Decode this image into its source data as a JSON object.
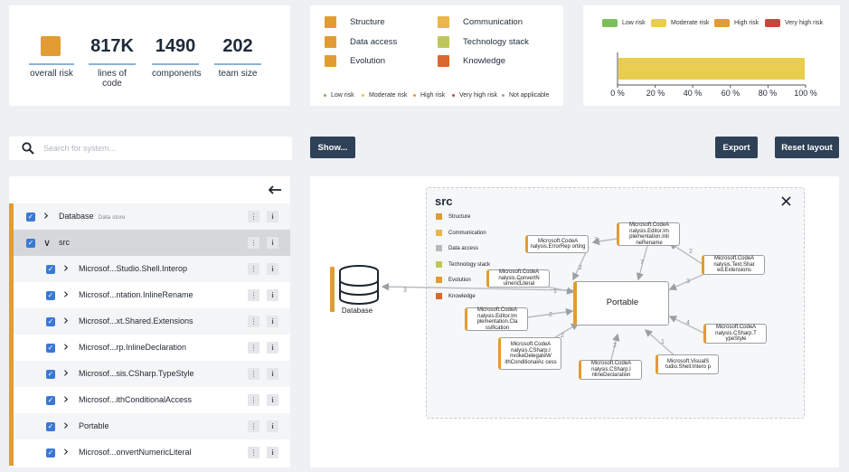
{
  "stats": [
    {
      "value": "",
      "label": "overall risk"
    },
    {
      "value": "817K",
      "label": "lines of code"
    },
    {
      "value": "1490",
      "label": "components"
    },
    {
      "value": "202",
      "label": "team size"
    }
  ],
  "legend": {
    "categories": [
      {
        "label": "Structure",
        "color": "#e19c34"
      },
      {
        "label": "Communication",
        "color": "#eab54a"
      },
      {
        "label": "Data access",
        "color": "#e19c34"
      },
      {
        "label": "Technology stack",
        "color": "#bfc75a"
      },
      {
        "label": "Evolution",
        "color": "#e19c34"
      },
      {
        "label": "Knowledge",
        "color": "#d9692e"
      }
    ],
    "risk_levels": [
      {
        "label": "Low risk",
        "color": "#72b55a"
      },
      {
        "label": "Moderate risk",
        "color": "#e6c84a"
      },
      {
        "label": "High risk",
        "color": "#e19c34"
      },
      {
        "label": "Very high risk",
        "color": "#c9463d"
      },
      {
        "label": "Not applicable",
        "color": "#9aa0a6"
      }
    ]
  },
  "riskbar": {
    "legend": [
      {
        "label": "Low risk",
        "color": "#7cbf5a"
      },
      {
        "label": "Moderate risk",
        "color": "#e9cd4f"
      },
      {
        "label": "High risk",
        "color": "#e19c34"
      },
      {
        "label": "Very high risk",
        "color": "#c9463d"
      }
    ],
    "ticks": [
      "0 %",
      "20 %",
      "40 %",
      "60 %",
      "80 %",
      "100 %"
    ],
    "moderate_fraction": 1.0
  },
  "search": {
    "placeholder": "Search for system..."
  },
  "buttons": {
    "show": "Show...",
    "export": "Export",
    "reset": "Reset layout"
  },
  "tree": {
    "rows": [
      {
        "name": "Database",
        "sub": "Data store",
        "level": 0,
        "expanded": false,
        "selected": false
      },
      {
        "name": "src",
        "sub": "",
        "level": 0,
        "expanded": true,
        "selected": true
      },
      {
        "name": "Microsof...Studio.Shell.Interop",
        "sub": "",
        "level": 1,
        "expanded": false,
        "selected": false
      },
      {
        "name": "Microsof...ntation.InlineRename",
        "sub": "",
        "level": 1,
        "expanded": false,
        "selected": false
      },
      {
        "name": "Microsof...xt.Shared.Extensions",
        "sub": "",
        "level": 1,
        "expanded": false,
        "selected": false
      },
      {
        "name": "Microsof...rp.InlineDeclaration",
        "sub": "",
        "level": 1,
        "expanded": false,
        "selected": false
      },
      {
        "name": "Microsof...sis.CSharp.TypeStyle",
        "sub": "",
        "level": 1,
        "expanded": false,
        "selected": false
      },
      {
        "name": "Microsof...ithConditionalAccess",
        "sub": "",
        "level": 1,
        "expanded": false,
        "selected": false
      },
      {
        "name": "Portable",
        "sub": "",
        "level": 1,
        "expanded": false,
        "selected": false
      },
      {
        "name": "Microsof...onvertNumericLiteral",
        "sub": "",
        "level": 1,
        "expanded": false,
        "selected": false
      }
    ]
  },
  "graph": {
    "title": "src",
    "legend": [
      {
        "label": "Structure",
        "color": "#e19c34"
      },
      {
        "label": "Communication",
        "color": "#eab54a"
      },
      {
        "label": "Data access",
        "color": "#b9b9b9"
      },
      {
        "label": "Technology stack",
        "color": "#bfc75a"
      },
      {
        "label": "Evolution",
        "color": "#e19c34"
      },
      {
        "label": "Knowledge",
        "color": "#d9692e"
      }
    ],
    "database_label": "Database",
    "center": "Portable",
    "nodes": [
      "Microsoft.CodeA nalysis.ErrorRep orting",
      "Microsoft.CodeA nalysis.Editor.Im plementation.Inli neRename",
      "Microsoft.CodeA nalysis.Text.Shar ed.Extensions",
      "Microsoft.CodeA nalysis.ConvertN umericLiteral",
      "Microsoft.CodeA nalysis.Editor.Im plementation.Cla ssification",
      "Microsoft.CodeA nalysis.CSharp.T ypeStyle",
      "Microsoft.CodeA nalysis.CSharp.I nvokeDelegateW ithConditionalAc cess",
      "Microsoft.CodeA nalysis.CSharp.I nlineDeclaration",
      "Microsoft.VisualS tudio.Shell.Intero p"
    ],
    "edge_labels": [
      "3",
      "2",
      "3",
      "7",
      "2",
      "3",
      "1",
      "2",
      "2",
      "2",
      "4",
      "1",
      "2"
    ]
  },
  "icons": {
    "search": "search-icon",
    "collapse": "arrow-left-icon",
    "close": "close-icon",
    "database": "database-icon"
  }
}
